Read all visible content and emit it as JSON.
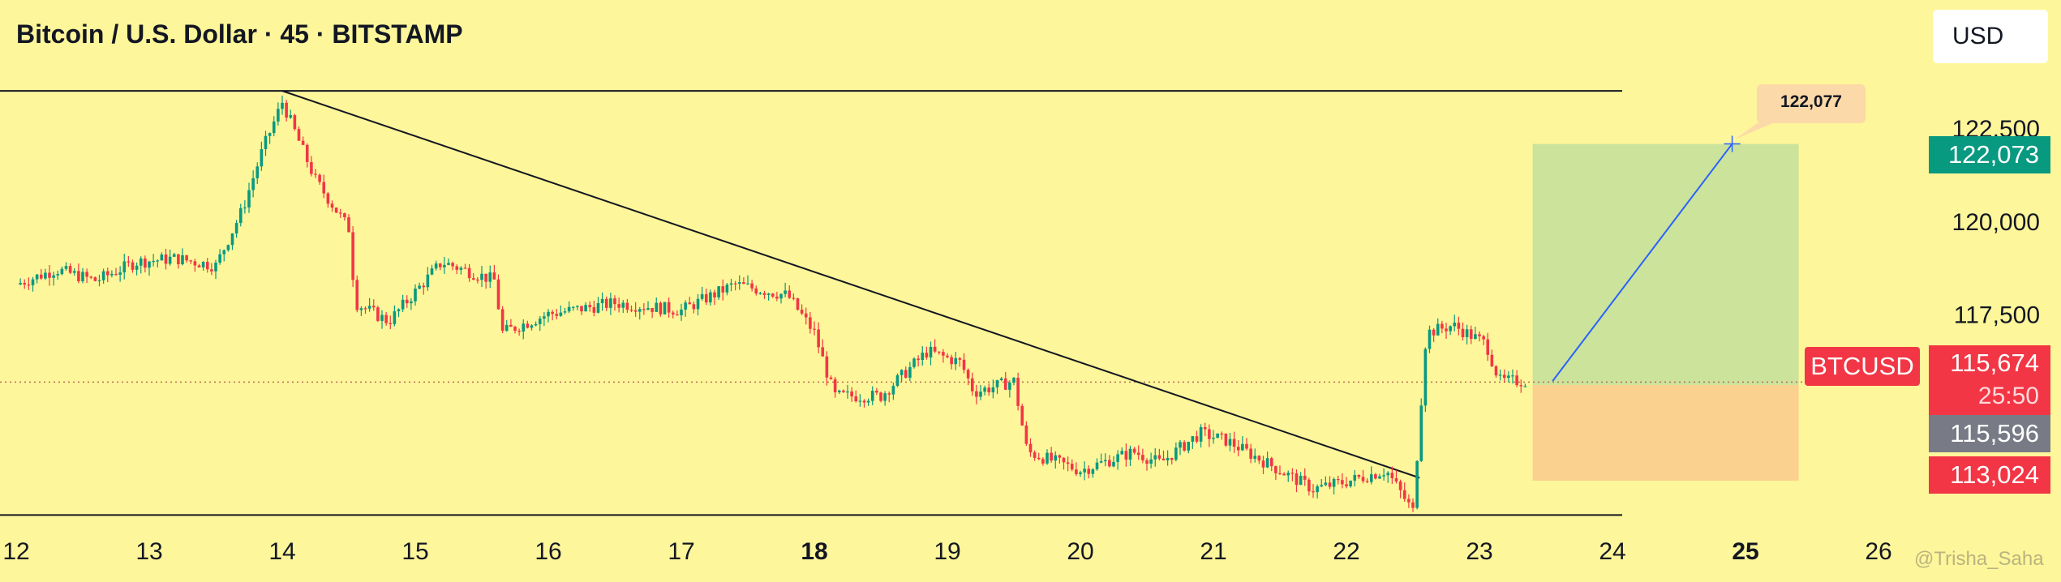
{
  "header": {
    "title": "Bitcoin / U.S. Dollar · 45 · BITSTAMP",
    "currency": "USD"
  },
  "price_scale": {
    "labels": [
      "122,500",
      "120,000",
      "117,500"
    ],
    "target_price": "122,073",
    "last_price": "115,674",
    "countdown": "25:50",
    "entry_price": "115,596",
    "stop_price": "113,024",
    "symbol": "BTCUSD"
  },
  "annotations": {
    "callout_price": "122,077",
    "watermark": "@Trisha_Saha"
  },
  "colors": {
    "background": "#fef69a",
    "up": "#089981",
    "down": "#f23645",
    "profit_zone": "#c8e29b",
    "loss_zone": "#fbcf8e",
    "neutral": "#787b86",
    "projection_line": "#2962ff"
  },
  "chart_data": {
    "type": "candlestick",
    "title": "Bitcoin / U.S. Dollar · 45 · BITSTAMP",
    "x_tick_labels": [
      "12",
      "13",
      "14",
      "15",
      "16",
      "17",
      "18",
      "19",
      "20",
      "21",
      "22",
      "23",
      "24",
      "25",
      "26"
    ],
    "x_tick_bold": [
      "18",
      "25"
    ],
    "ylim": [
      112000,
      124200
    ],
    "y_tick_values": [
      122500,
      120000,
      117500
    ],
    "series": [
      {
        "name": "BTCUSD",
        "points": [
          {
            "x": 12.0,
            "y": 118300
          },
          {
            "x": 12.3,
            "y": 118700
          },
          {
            "x": 12.6,
            "y": 118400
          },
          {
            "x": 12.9,
            "y": 118900
          },
          {
            "x": 13.2,
            "y": 119000
          },
          {
            "x": 13.5,
            "y": 118800
          },
          {
            "x": 13.7,
            "y": 120300
          },
          {
            "x": 13.85,
            "y": 121900
          },
          {
            "x": 14.0,
            "y": 123200
          },
          {
            "x": 14.25,
            "y": 121100
          },
          {
            "x": 14.5,
            "y": 119800
          },
          {
            "x": 14.55,
            "y": 117800
          },
          {
            "x": 14.8,
            "y": 117300
          },
          {
            "x": 15.2,
            "y": 118900
          },
          {
            "x": 15.6,
            "y": 118400
          },
          {
            "x": 15.65,
            "y": 117000
          },
          {
            "x": 16.0,
            "y": 117500
          },
          {
            "x": 16.5,
            "y": 117800
          },
          {
            "x": 17.0,
            "y": 117600
          },
          {
            "x": 17.4,
            "y": 118300
          },
          {
            "x": 17.8,
            "y": 118000
          },
          {
            "x": 18.0,
            "y": 117000
          },
          {
            "x": 18.15,
            "y": 115300
          },
          {
            "x": 18.5,
            "y": 115300
          },
          {
            "x": 18.85,
            "y": 116500
          },
          {
            "x": 19.1,
            "y": 116200
          },
          {
            "x": 19.2,
            "y": 115400
          },
          {
            "x": 19.5,
            "y": 115700
          },
          {
            "x": 19.6,
            "y": 113800
          },
          {
            "x": 20.0,
            "y": 113300
          },
          {
            "x": 20.4,
            "y": 113800
          },
          {
            "x": 20.6,
            "y": 113500
          },
          {
            "x": 20.9,
            "y": 114300
          },
          {
            "x": 21.1,
            "y": 114100
          },
          {
            "x": 21.5,
            "y": 113300
          },
          {
            "x": 21.75,
            "y": 112800
          },
          {
            "x": 22.0,
            "y": 113000
          },
          {
            "x": 22.3,
            "y": 113300
          },
          {
            "x": 22.5,
            "y": 112200
          },
          {
            "x": 22.6,
            "y": 117000
          },
          {
            "x": 22.8,
            "y": 117200
          },
          {
            "x": 23.05,
            "y": 116700
          },
          {
            "x": 23.15,
            "y": 115700
          },
          {
            "x": 23.35,
            "y": 115700
          }
        ]
      }
    ],
    "resistance_line": {
      "y": 123500
    },
    "support_line": {
      "y": 112100
    },
    "trendline": {
      "x1": 14.0,
      "y1": 123500,
      "x2": 22.55,
      "y2": 113100
    },
    "current_price_line": {
      "y": 115674
    },
    "position": {
      "x_start": 23.4,
      "x_end": 25.4,
      "entry": 115596,
      "target": 122073,
      "stop": 113024
    },
    "projection": {
      "x1": 23.55,
      "y1": 115700,
      "x2": 24.9,
      "y2": 122077
    }
  }
}
